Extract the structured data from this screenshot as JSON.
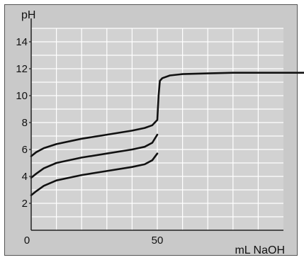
{
  "chart_data": {
    "type": "line",
    "title": "",
    "ylabel": "pH",
    "xlabel": "mL NaOH",
    "xlim": [
      0,
      100
    ],
    "ylim": [
      0,
      15
    ],
    "grid": true,
    "x_ticks": [
      {
        "value": 0,
        "label": "0"
      },
      {
        "value": 50,
        "label": "50"
      }
    ],
    "y_ticks": [
      {
        "value": 2,
        "label": "2"
      },
      {
        "value": 4,
        "label": "4"
      },
      {
        "value": 6,
        "label": "6"
      },
      {
        "value": 8,
        "label": "8"
      },
      {
        "value": 10,
        "label": "10"
      },
      {
        "value": 12,
        "label": "12"
      },
      {
        "value": 14,
        "label": "14"
      }
    ],
    "series": [
      {
        "x": [
          0,
          2,
          5,
          10,
          20,
          30,
          40,
          45,
          48,
          50,
          50.5,
          51,
          52,
          55,
          60,
          70,
          80,
          90,
          100,
          110
        ],
        "y": [
          5.5,
          5.8,
          6.1,
          6.4,
          6.8,
          7.1,
          7.4,
          7.6,
          7.8,
          8.2,
          10.0,
          11.1,
          11.3,
          11.5,
          11.6,
          11.65,
          11.7,
          11.7,
          11.7,
          11.7
        ]
      },
      {
        "x": [
          0,
          2,
          5,
          10,
          20,
          30,
          40,
          45,
          48,
          50
        ],
        "y": [
          3.9,
          4.2,
          4.6,
          5.0,
          5.4,
          5.7,
          6.0,
          6.2,
          6.5,
          7.1
        ]
      },
      {
        "x": [
          0,
          2,
          5,
          10,
          20,
          30,
          40,
          45,
          48,
          50
        ],
        "y": [
          2.6,
          2.9,
          3.3,
          3.7,
          4.1,
          4.4,
          4.7,
          4.9,
          5.2,
          5.7
        ]
      }
    ]
  }
}
